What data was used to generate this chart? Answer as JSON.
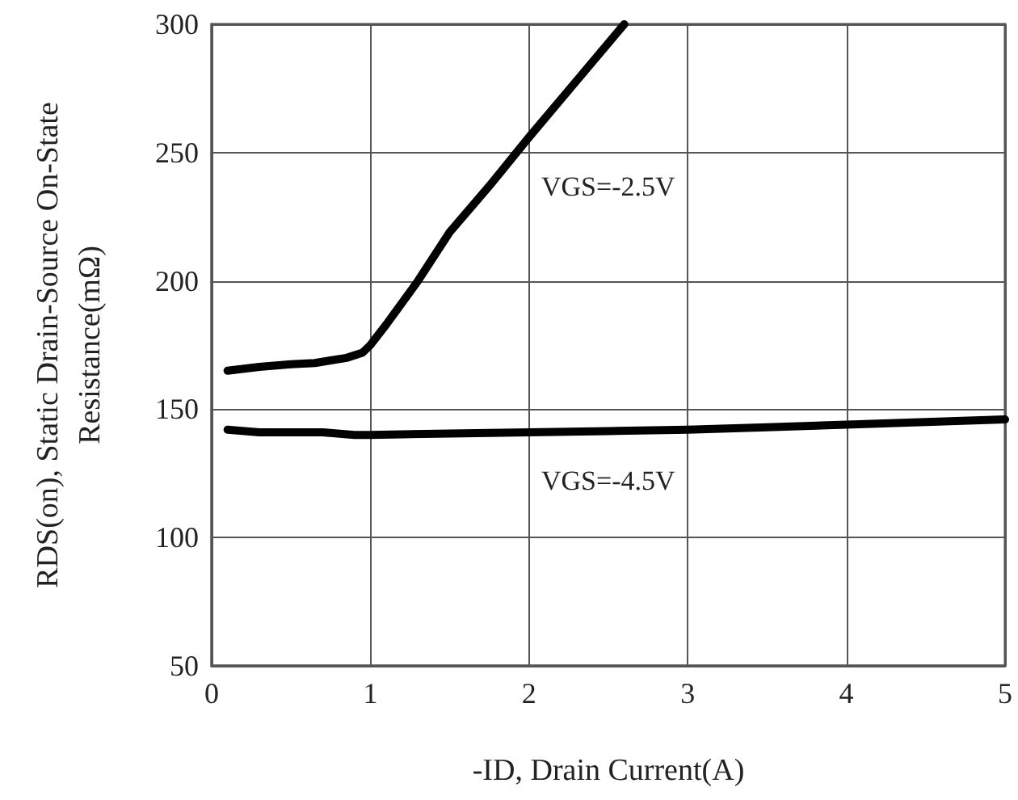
{
  "chart_data": {
    "type": "line",
    "xlabel": "-ID, Drain Current(A)",
    "ylabel": "RDS(on), Static Drain-Source On-State\nResistance(mΩ)",
    "xlim": [
      0,
      5
    ],
    "xticks": [
      0,
      1,
      2,
      3,
      4,
      5
    ],
    "ylim": [
      50,
      300
    ],
    "yticks": [
      50,
      100,
      150,
      200,
      250,
      300
    ],
    "grid": true,
    "marker": "none",
    "line_style": "solid",
    "series": [
      {
        "color": "#000000",
        "x": [
          0.1,
          0.3,
          0.5,
          0.65,
          0.75,
          0.85,
          0.95,
          1.0,
          1.1,
          1.3,
          1.5,
          1.75,
          2.0,
          2.3,
          2.6
        ],
        "values": [
          165,
          166.5,
          167.5,
          168,
          169,
          170,
          172,
          175,
          183,
          200,
          219,
          237,
          256,
          278,
          300
        ]
      },
      {
        "color": "#000000",
        "x": [
          0.1,
          0.3,
          0.5,
          0.7,
          0.9,
          1.0,
          1.5,
          2.0,
          2.5,
          3.0,
          3.5,
          4.0,
          4.5,
          5.0
        ],
        "values": [
          142,
          141,
          141,
          141,
          140,
          140,
          140.5,
          141,
          141.5,
          142,
          143,
          144,
          145,
          146
        ]
      }
    ],
    "annotations": [
      "VGS=-2.5V",
      "VGS=-4.5V"
    ]
  }
}
